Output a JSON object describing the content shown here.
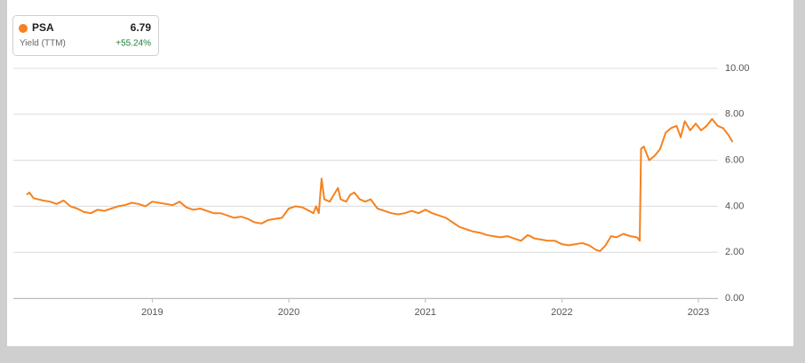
{
  "chart_data": {
    "type": "line",
    "legend": {
      "name": "PSA",
      "last_value": 6.79,
      "metric": "Yield (TTM)",
      "change": "+55.24%"
    },
    "xlim": [
      2018.08,
      2023.26
    ],
    "xticks": [
      2019,
      2020,
      2021,
      2022,
      2023
    ],
    "ylim": [
      0,
      10
    ],
    "yticks": [
      {
        "value": 0,
        "label": "0.00"
      },
      {
        "value": 2,
        "label": "2.00"
      },
      {
        "value": 4,
        "label": "4.00"
      },
      {
        "value": 6,
        "label": "6.00"
      },
      {
        "value": 8,
        "label": "8.00"
      },
      {
        "value": 10,
        "label": "10.00"
      }
    ],
    "grid": true,
    "series": [
      {
        "name": "PSA",
        "color": "#f58220",
        "x": [
          2018.08,
          2018.1,
          2018.13,
          2018.2,
          2018.25,
          2018.3,
          2018.35,
          2018.4,
          2018.45,
          2018.5,
          2018.55,
          2018.6,
          2018.65,
          2018.7,
          2018.75,
          2018.8,
          2018.85,
          2018.9,
          2018.95,
          2019.0,
          2019.05,
          2019.1,
          2019.15,
          2019.2,
          2019.25,
          2019.3,
          2019.35,
          2019.4,
          2019.45,
          2019.5,
          2019.55,
          2019.6,
          2019.65,
          2019.7,
          2019.75,
          2019.8,
          2019.85,
          2019.9,
          2019.95,
          2020.0,
          2020.05,
          2020.1,
          2020.15,
          2020.18,
          2020.2,
          2020.22,
          2020.24,
          2020.26,
          2020.3,
          2020.33,
          2020.36,
          2020.38,
          2020.42,
          2020.45,
          2020.48,
          2020.52,
          2020.56,
          2020.6,
          2020.65,
          2020.7,
          2020.75,
          2020.8,
          2020.85,
          2020.9,
          2020.95,
          2021.0,
          2021.05,
          2021.1,
          2021.15,
          2021.2,
          2021.25,
          2021.3,
          2021.35,
          2021.4,
          2021.45,
          2021.5,
          2021.55,
          2021.6,
          2021.65,
          2021.7,
          2021.75,
          2021.8,
          2021.85,
          2021.9,
          2021.95,
          2022.0,
          2022.05,
          2022.1,
          2022.15,
          2022.2,
          2022.25,
          2022.28,
          2022.32,
          2022.36,
          2022.4,
          2022.45,
          2022.5,
          2022.55,
          2022.57,
          2022.58,
          2022.6,
          2022.64,
          2022.68,
          2022.72,
          2022.76,
          2022.8,
          2022.84,
          2022.87,
          2022.9,
          2022.94,
          2022.98,
          2023.02,
          2023.06,
          2023.1,
          2023.14,
          2023.18,
          2023.22,
          2023.25
        ],
        "values": [
          4.5,
          4.6,
          4.35,
          4.25,
          4.2,
          4.1,
          4.25,
          4.0,
          3.9,
          3.75,
          3.7,
          3.85,
          3.8,
          3.9,
          4.0,
          4.05,
          4.15,
          4.1,
          4.0,
          4.2,
          4.15,
          4.1,
          4.05,
          4.2,
          3.95,
          3.85,
          3.9,
          3.8,
          3.7,
          3.7,
          3.6,
          3.5,
          3.55,
          3.45,
          3.3,
          3.25,
          3.4,
          3.45,
          3.5,
          3.9,
          4.0,
          3.95,
          3.8,
          3.7,
          4.0,
          3.7,
          5.2,
          4.3,
          4.2,
          4.5,
          4.8,
          4.3,
          4.2,
          4.5,
          4.6,
          4.3,
          4.2,
          4.3,
          3.9,
          3.8,
          3.7,
          3.65,
          3.7,
          3.8,
          3.7,
          3.85,
          3.7,
          3.6,
          3.5,
          3.3,
          3.1,
          3.0,
          2.9,
          2.85,
          2.75,
          2.7,
          2.65,
          2.7,
          2.6,
          2.5,
          2.75,
          2.6,
          2.55,
          2.5,
          2.5,
          2.35,
          2.3,
          2.35,
          2.4,
          2.3,
          2.1,
          2.05,
          2.3,
          2.7,
          2.65,
          2.8,
          2.7,
          2.65,
          2.5,
          6.5,
          6.6,
          6.0,
          6.2,
          6.5,
          7.2,
          7.4,
          7.5,
          7.0,
          7.7,
          7.3,
          7.6,
          7.3,
          7.5,
          7.8,
          7.5,
          7.4,
          7.1,
          6.79
        ]
      }
    ]
  }
}
